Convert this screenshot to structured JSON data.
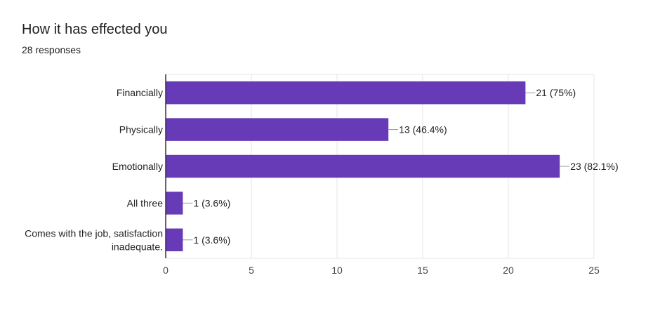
{
  "header": {
    "title": "How it has effected you",
    "subtitle": "28 responses"
  },
  "colors": {
    "bar": "#673ab7",
    "grid": "#e6e6e6",
    "axis": "#333333"
  },
  "chart_data": {
    "type": "bar",
    "orientation": "horizontal",
    "title": "How it has effected you",
    "subtitle": "28 responses",
    "categories": [
      [
        "Financially"
      ],
      [
        "Physically"
      ],
      [
        "Emotionally"
      ],
      [
        "All three"
      ],
      [
        "Comes with the job, satisfaction",
        "inadequate."
      ]
    ],
    "values": [
      21,
      13,
      23,
      1,
      1
    ],
    "data_labels": [
      "21 (75%)",
      "13 (46.4%)",
      "23 (82.1%)",
      "1 (3.6%)",
      "1 (3.6%)"
    ],
    "xlim": [
      0,
      25
    ],
    "xticks": [
      0,
      5,
      10,
      15,
      20,
      25
    ],
    "grid": true
  }
}
